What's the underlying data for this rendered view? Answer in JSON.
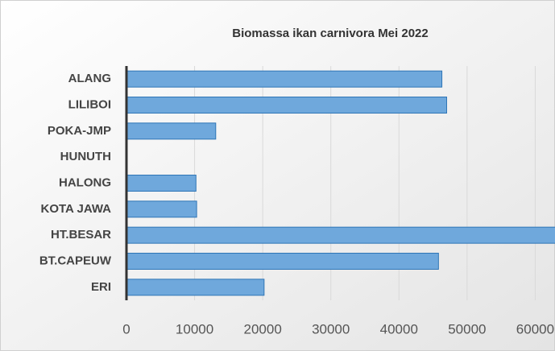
{
  "chart_data": {
    "type": "barh",
    "title": "Biomassa ikan carnivora Mei 2022",
    "categories": [
      "ALANG",
      "LILIBOI",
      "POKA-JMP",
      "HUNUTH",
      "HALONG",
      "KOTA JAWA",
      "HT.BESAR",
      "BT.CAPEUW",
      "ERI"
    ],
    "values": [
      46300,
      47000,
      13100,
      0,
      10200,
      10300,
      63000,
      45800,
      20200
    ],
    "color": "#6fa8dc",
    "xlim": [
      0,
      70000
    ],
    "xticks": [
      0,
      10000,
      20000,
      30000,
      40000,
      50000,
      60000
    ],
    "grid": true
  }
}
